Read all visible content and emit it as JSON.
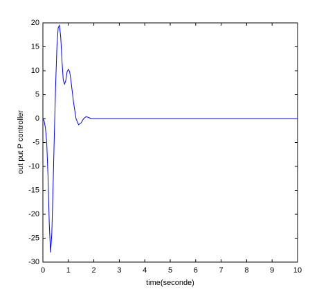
{
  "chart_data": {
    "type": "line",
    "xlabel": "time(seconde)",
    "ylabel": "out put P controller",
    "x": [
      0,
      0.05,
      0.1,
      0.15,
      0.2,
      0.25,
      0.3,
      0.35,
      0.4,
      0.45,
      0.5,
      0.55,
      0.6,
      0.65,
      0.7,
      0.75,
      0.8,
      0.85,
      0.9,
      0.95,
      1.0,
      1.05,
      1.1,
      1.2,
      1.3,
      1.4,
      1.5,
      1.6,
      1.7,
      1.8,
      1.9,
      2.0,
      3,
      4,
      5,
      6,
      7,
      8,
      9,
      10
    ],
    "series": [
      {
        "color": "#0000ff",
        "values": [
          0,
          -0.5,
          -2,
          -5,
          -12,
          -22,
          -28,
          -24,
          -14,
          -3,
          7,
          15,
          19,
          19.5,
          17,
          12,
          8,
          7.2,
          8,
          9.8,
          10.3,
          9.8,
          8,
          3.5,
          0,
          -1.3,
          -0.9,
          0,
          0.4,
          0.2,
          0,
          0,
          0,
          0,
          0,
          0,
          0,
          0,
          0,
          0
        ]
      }
    ],
    "xlim": [
      0,
      10
    ],
    "xticks": [
      0,
      1,
      2,
      3,
      4,
      5,
      6,
      7,
      8,
      9,
      10
    ],
    "ylim": [
      -30,
      20
    ],
    "yticks": [
      -30,
      -25,
      -20,
      -15,
      -10,
      -5,
      0,
      5,
      10,
      15,
      20
    ]
  }
}
